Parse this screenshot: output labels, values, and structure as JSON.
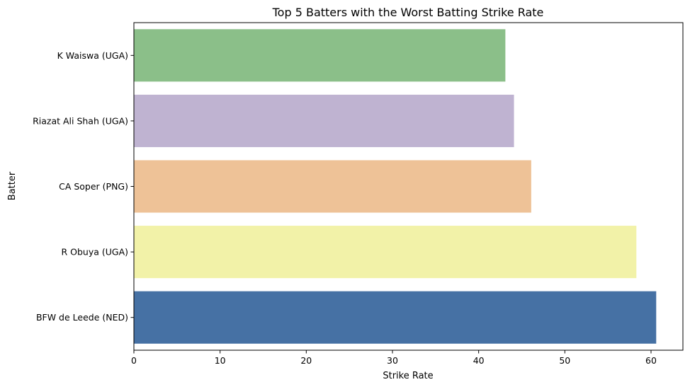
{
  "chart_data": {
    "type": "bar",
    "orientation": "horizontal",
    "title": "Top 5 Batters with the Worst Batting Strike Rate",
    "xlabel": "Strike Rate",
    "ylabel": "Batter",
    "categories": [
      "K Waiswa (UGA)",
      "Riazat Ali Shah (UGA)",
      "CA Soper (PNG)",
      "R Obuya (UGA)",
      "BFW de Leede (NED)"
    ],
    "values": [
      43.1,
      44.1,
      46.1,
      58.3,
      60.6
    ],
    "colors": [
      "#8bbf89",
      "#bfb3d1",
      "#eec297",
      "#f2f2a8",
      "#4671a4"
    ],
    "xlim": [
      0,
      63.7
    ],
    "xticks": [
      0,
      10,
      20,
      30,
      40,
      50,
      60
    ],
    "grid": false,
    "legend": "none"
  }
}
